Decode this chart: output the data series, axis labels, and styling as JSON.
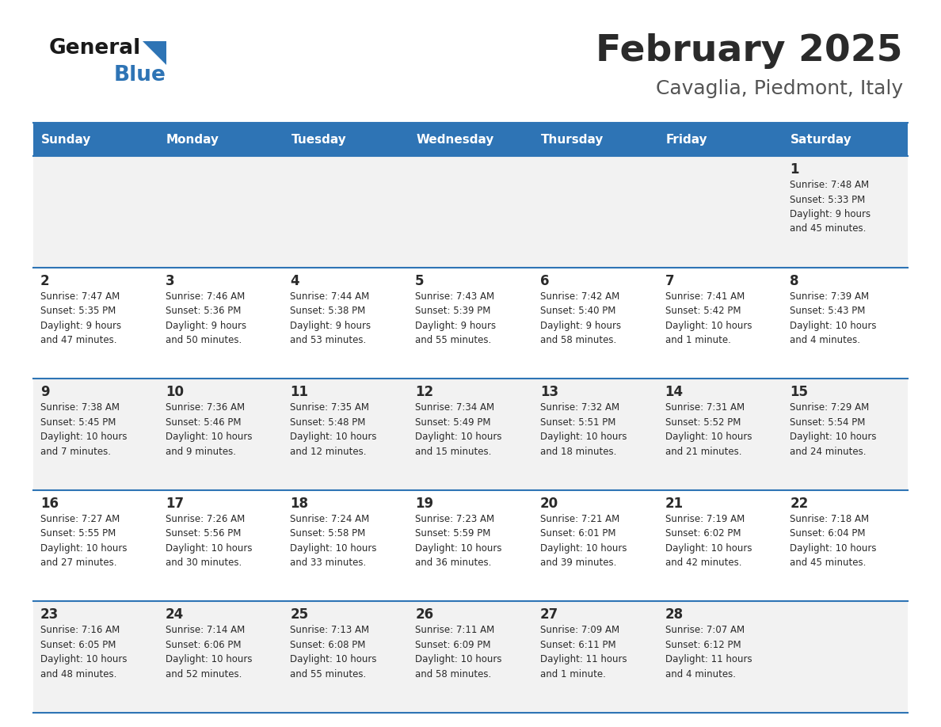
{
  "title": "February 2025",
  "subtitle": "Cavaglia, Piedmont, Italy",
  "header_bg": "#2E74B5",
  "header_text_color": "#FFFFFF",
  "day_names": [
    "Sunday",
    "Monday",
    "Tuesday",
    "Wednesday",
    "Thursday",
    "Friday",
    "Saturday"
  ],
  "row_bg_even": "#F2F2F2",
  "row_bg_odd": "#FFFFFF",
  "cell_border_color": "#2E74B5",
  "day_number_color": "#2a2a2a",
  "info_text_color": "#2a2a2a",
  "title_color": "#2a2a2a",
  "subtitle_color": "#555555",
  "logo_general_color": "#1a1a1a",
  "logo_blue_color": "#2E74B5",
  "logo_triangle_color": "#2E74B5",
  "weeks": [
    [
      {
        "day": null,
        "info": null
      },
      {
        "day": null,
        "info": null
      },
      {
        "day": null,
        "info": null
      },
      {
        "day": null,
        "info": null
      },
      {
        "day": null,
        "info": null
      },
      {
        "day": null,
        "info": null
      },
      {
        "day": 1,
        "info": "Sunrise: 7:48 AM\nSunset: 5:33 PM\nDaylight: 9 hours\nand 45 minutes."
      }
    ],
    [
      {
        "day": 2,
        "info": "Sunrise: 7:47 AM\nSunset: 5:35 PM\nDaylight: 9 hours\nand 47 minutes."
      },
      {
        "day": 3,
        "info": "Sunrise: 7:46 AM\nSunset: 5:36 PM\nDaylight: 9 hours\nand 50 minutes."
      },
      {
        "day": 4,
        "info": "Sunrise: 7:44 AM\nSunset: 5:38 PM\nDaylight: 9 hours\nand 53 minutes."
      },
      {
        "day": 5,
        "info": "Sunrise: 7:43 AM\nSunset: 5:39 PM\nDaylight: 9 hours\nand 55 minutes."
      },
      {
        "day": 6,
        "info": "Sunrise: 7:42 AM\nSunset: 5:40 PM\nDaylight: 9 hours\nand 58 minutes."
      },
      {
        "day": 7,
        "info": "Sunrise: 7:41 AM\nSunset: 5:42 PM\nDaylight: 10 hours\nand 1 minute."
      },
      {
        "day": 8,
        "info": "Sunrise: 7:39 AM\nSunset: 5:43 PM\nDaylight: 10 hours\nand 4 minutes."
      }
    ],
    [
      {
        "day": 9,
        "info": "Sunrise: 7:38 AM\nSunset: 5:45 PM\nDaylight: 10 hours\nand 7 minutes."
      },
      {
        "day": 10,
        "info": "Sunrise: 7:36 AM\nSunset: 5:46 PM\nDaylight: 10 hours\nand 9 minutes."
      },
      {
        "day": 11,
        "info": "Sunrise: 7:35 AM\nSunset: 5:48 PM\nDaylight: 10 hours\nand 12 minutes."
      },
      {
        "day": 12,
        "info": "Sunrise: 7:34 AM\nSunset: 5:49 PM\nDaylight: 10 hours\nand 15 minutes."
      },
      {
        "day": 13,
        "info": "Sunrise: 7:32 AM\nSunset: 5:51 PM\nDaylight: 10 hours\nand 18 minutes."
      },
      {
        "day": 14,
        "info": "Sunrise: 7:31 AM\nSunset: 5:52 PM\nDaylight: 10 hours\nand 21 minutes."
      },
      {
        "day": 15,
        "info": "Sunrise: 7:29 AM\nSunset: 5:54 PM\nDaylight: 10 hours\nand 24 minutes."
      }
    ],
    [
      {
        "day": 16,
        "info": "Sunrise: 7:27 AM\nSunset: 5:55 PM\nDaylight: 10 hours\nand 27 minutes."
      },
      {
        "day": 17,
        "info": "Sunrise: 7:26 AM\nSunset: 5:56 PM\nDaylight: 10 hours\nand 30 minutes."
      },
      {
        "day": 18,
        "info": "Sunrise: 7:24 AM\nSunset: 5:58 PM\nDaylight: 10 hours\nand 33 minutes."
      },
      {
        "day": 19,
        "info": "Sunrise: 7:23 AM\nSunset: 5:59 PM\nDaylight: 10 hours\nand 36 minutes."
      },
      {
        "day": 20,
        "info": "Sunrise: 7:21 AM\nSunset: 6:01 PM\nDaylight: 10 hours\nand 39 minutes."
      },
      {
        "day": 21,
        "info": "Sunrise: 7:19 AM\nSunset: 6:02 PM\nDaylight: 10 hours\nand 42 minutes."
      },
      {
        "day": 22,
        "info": "Sunrise: 7:18 AM\nSunset: 6:04 PM\nDaylight: 10 hours\nand 45 minutes."
      }
    ],
    [
      {
        "day": 23,
        "info": "Sunrise: 7:16 AM\nSunset: 6:05 PM\nDaylight: 10 hours\nand 48 minutes."
      },
      {
        "day": 24,
        "info": "Sunrise: 7:14 AM\nSunset: 6:06 PM\nDaylight: 10 hours\nand 52 minutes."
      },
      {
        "day": 25,
        "info": "Sunrise: 7:13 AM\nSunset: 6:08 PM\nDaylight: 10 hours\nand 55 minutes."
      },
      {
        "day": 26,
        "info": "Sunrise: 7:11 AM\nSunset: 6:09 PM\nDaylight: 10 hours\nand 58 minutes."
      },
      {
        "day": 27,
        "info": "Sunrise: 7:09 AM\nSunset: 6:11 PM\nDaylight: 11 hours\nand 1 minute."
      },
      {
        "day": 28,
        "info": "Sunrise: 7:07 AM\nSunset: 6:12 PM\nDaylight: 11 hours\nand 4 minutes."
      },
      {
        "day": null,
        "info": null
      }
    ]
  ]
}
